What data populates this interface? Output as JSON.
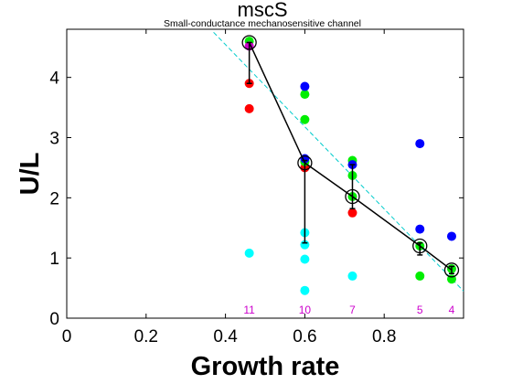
{
  "chart_data": {
    "type": "scatter",
    "title": "mscS",
    "subtitle": "Small-conductance mechanosensitive channel",
    "xlabel": "Growth rate",
    "ylabel": "U/L",
    "xlim": [
      0,
      1.0
    ],
    "ylim": [
      0,
      4.8
    ],
    "xticks": [
      "0",
      "0.2",
      "0.4",
      "0.6",
      "0.8"
    ],
    "xtick_values": [
      0,
      0.2,
      0.4,
      0.6,
      0.8
    ],
    "yticks": [
      "0",
      "1",
      "2",
      "3",
      "4"
    ],
    "ytick_values": [
      0,
      1,
      2,
      3,
      4
    ],
    "grid": false,
    "colors": {
      "red": "#ff0000",
      "green": "#00ee00",
      "blue": "#0000ff",
      "cyan": "#00ffff",
      "magenta": "#cc00cc",
      "mean_line": "#000000",
      "fit_line": "#00cccc"
    },
    "series": [
      {
        "color_key": "red",
        "points": [
          [
            0.46,
            3.9
          ],
          [
            0.46,
            3.48
          ],
          [
            0.6,
            2.5
          ],
          [
            0.72,
            1.75
          ]
        ]
      },
      {
        "color_key": "green",
        "points": [
          [
            0.46,
            4.6
          ],
          [
            0.6,
            3.72
          ],
          [
            0.6,
            3.3
          ],
          [
            0.6,
            2.6
          ],
          [
            0.72,
            2.62
          ],
          [
            0.72,
            2.37
          ],
          [
            0.72,
            2.02
          ],
          [
            0.89,
            1.2
          ],
          [
            0.89,
            0.7
          ],
          [
            0.97,
            0.82
          ],
          [
            0.97,
            0.65
          ]
        ]
      },
      {
        "color_key": "blue",
        "points": [
          [
            0.6,
            3.85
          ],
          [
            0.6,
            2.65
          ],
          [
            0.72,
            2.55
          ],
          [
            0.89,
            2.9
          ],
          [
            0.89,
            1.48
          ],
          [
            0.97,
            1.36
          ]
        ]
      },
      {
        "color_key": "cyan",
        "points": [
          [
            0.46,
            1.08
          ],
          [
            0.6,
            1.42
          ],
          [
            0.6,
            1.22
          ],
          [
            0.6,
            0.98
          ],
          [
            0.6,
            0.46
          ],
          [
            0.72,
            0.7
          ]
        ]
      },
      {
        "color_key": "magenta",
        "points": [
          [
            0.46,
            4.52
          ]
        ]
      }
    ],
    "mean": {
      "x": [
        0.46,
        0.6,
        0.72,
        0.89,
        0.97
      ],
      "y": [
        4.58,
        2.58,
        2.02,
        1.2,
        0.8
      ],
      "err_low": [
        3.9,
        1.25,
        1.82,
        1.05,
        0.74
      ],
      "err_high": [
        4.58,
        2.62,
        2.55,
        1.25,
        0.86
      ]
    },
    "fit_line": {
      "x": [
        0.37,
        1.0
      ],
      "y": [
        4.75,
        0.45
      ]
    },
    "counts": [
      {
        "x": 0.46,
        "label": "11"
      },
      {
        "x": 0.6,
        "label": "10"
      },
      {
        "x": 0.72,
        "label": "7"
      },
      {
        "x": 0.89,
        "label": "5"
      },
      {
        "x": 0.97,
        "label": "4"
      }
    ]
  }
}
